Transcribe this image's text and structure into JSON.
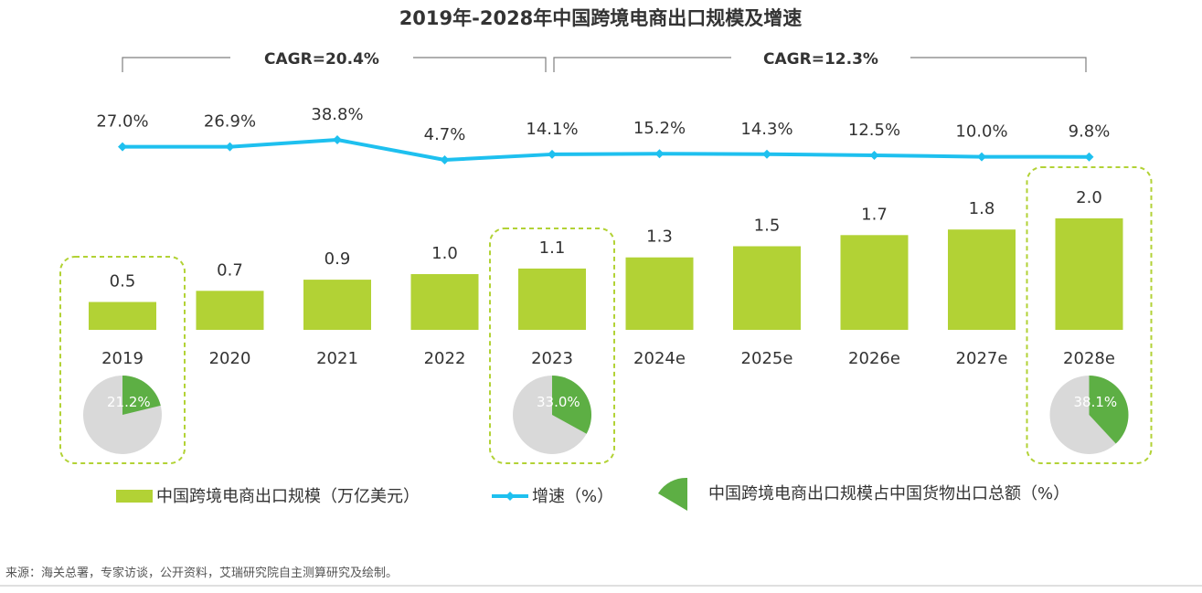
{
  "chart_data": {
    "type": "bar+line+pie",
    "title": "2019年-2028年中国跨境电商出口规模及增速",
    "categories": [
      "2019",
      "2020",
      "2021",
      "2022",
      "2023",
      "2024e",
      "2025e",
      "2026e",
      "2027e",
      "2028e"
    ],
    "series": [
      {
        "name": "中国跨境电商出口规模（万亿美元）",
        "type": "bar",
        "values": [
          0.5,
          0.7,
          0.9,
          1.0,
          1.1,
          1.3,
          1.5,
          1.7,
          1.8,
          2.0
        ],
        "labels": [
          "0.5",
          "0.7",
          "0.9",
          "1.0",
          "1.1",
          "1.3",
          "1.5",
          "1.7",
          "1.8",
          "2.0"
        ]
      },
      {
        "name": "增速（%）",
        "type": "line",
        "values": [
          27.0,
          26.9,
          38.8,
          4.7,
          14.1,
          15.2,
          14.3,
          12.5,
          10.0,
          9.8
        ],
        "labels": [
          "27.0%",
          "26.9%",
          "38.8%",
          "4.7%",
          "14.1%",
          "15.2%",
          "14.3%",
          "12.5%",
          "10.0%",
          "9.8%"
        ]
      },
      {
        "name": "中国跨境电商出口规模占中国货物出口总额（%）",
        "type": "pie",
        "points": [
          {
            "category": "2019",
            "value": 21.2,
            "label": "21.2%"
          },
          {
            "category": "2023",
            "value": 33.0,
            "label": "33.0%"
          },
          {
            "category": "2028e",
            "value": 38.1,
            "label": "38.1%"
          }
        ]
      }
    ],
    "cagr": [
      {
        "label": "CAGR=20.4%",
        "from": "2019",
        "to": "2023"
      },
      {
        "label": "CAGR=12.3%",
        "from": "2023",
        "to": "2028e"
      }
    ],
    "highlighted": [
      "2019",
      "2023",
      "2028e"
    ],
    "ylim_bar": [
      0,
      2.0
    ],
    "ylim_line": [
      0,
      40
    ]
  },
  "legend": {
    "bar": "中国跨境电商出口规模（万亿美元）",
    "line": "增速（%）",
    "pie": "中国跨境电商出口规模占中国货物出口总额（%）"
  },
  "source": "来源：海关总署，专家访谈，公开资料，艾瑞研究院自主测算研究及绘制。",
  "colors": {
    "bar": "#b2d235",
    "line": "#1ec0ef",
    "pie": "#5daf44",
    "pie_rest": "#d9d9d9",
    "highlight_border": "#b2d235"
  }
}
